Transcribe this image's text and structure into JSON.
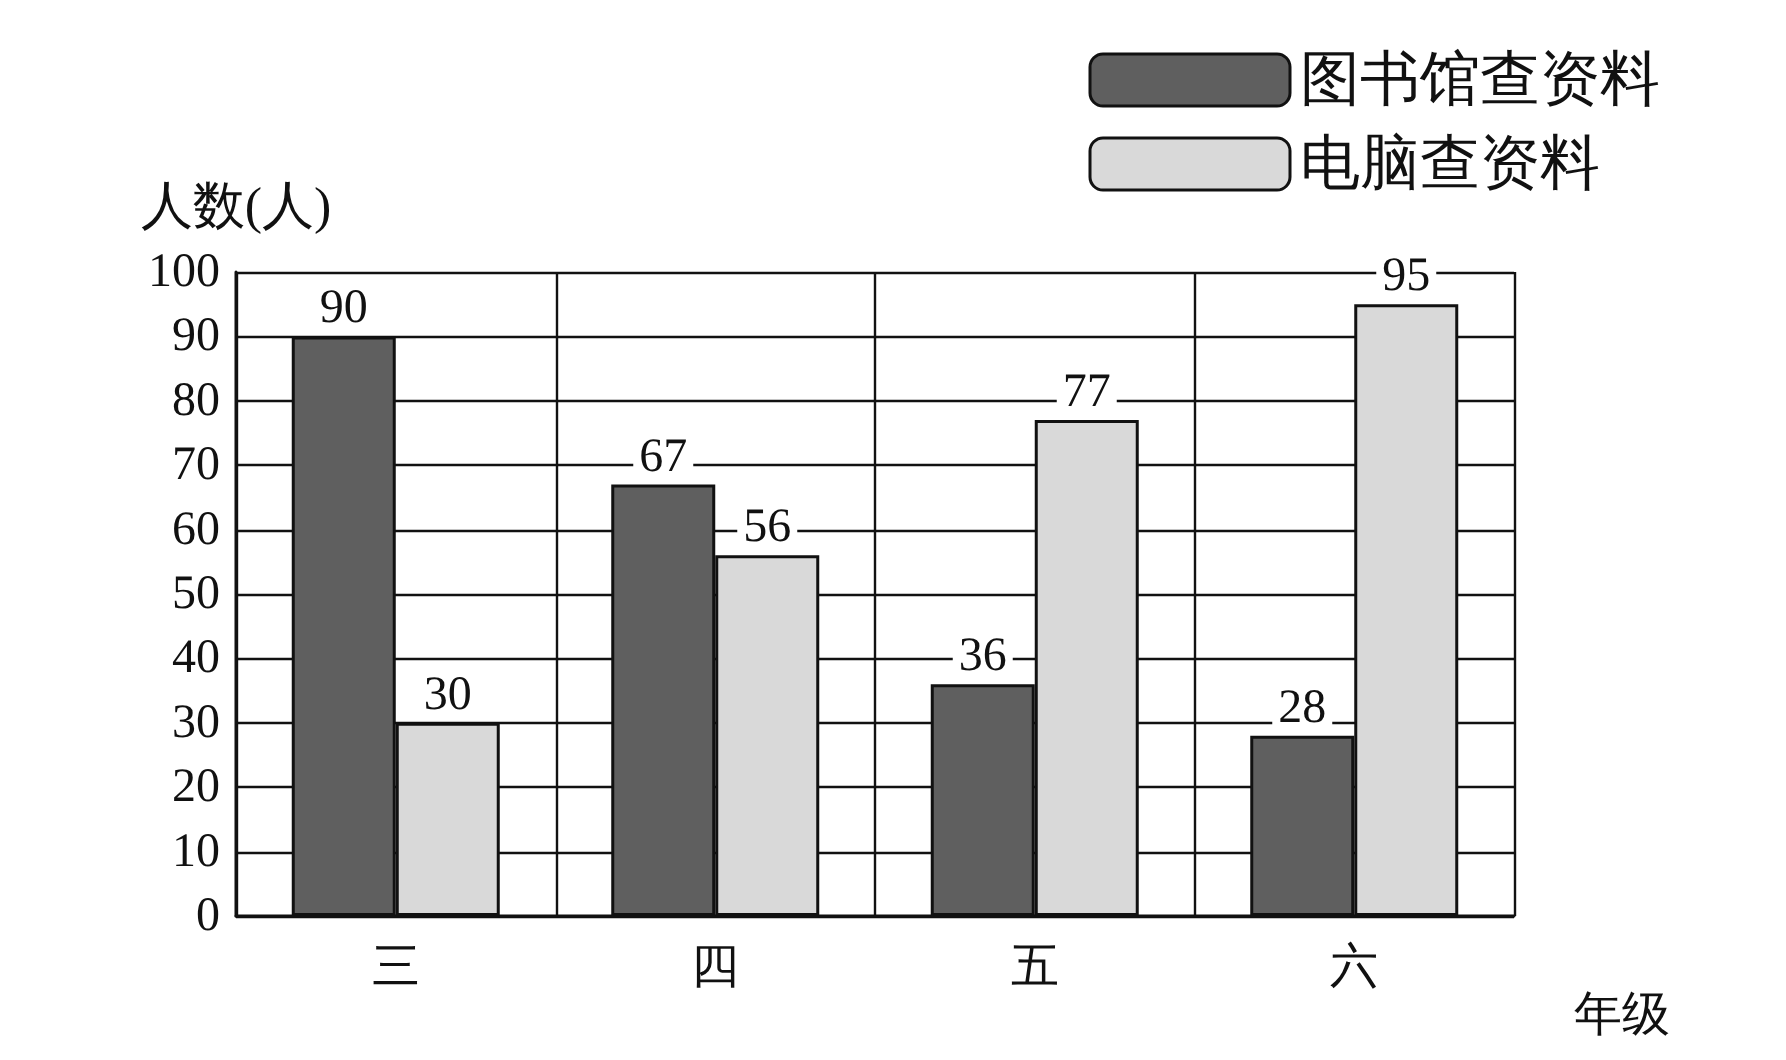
{
  "chart_data": {
    "type": "bar",
    "categories": [
      "三",
      "四",
      "五",
      "六"
    ],
    "series": [
      {
        "name": "图书馆查资料",
        "color": "#5f5f5f",
        "values": [
          90,
          67,
          36,
          28
        ]
      },
      {
        "name": "电脑查资料",
        "color": "#d9d9d9",
        "values": [
          30,
          56,
          77,
          95
        ]
      }
    ],
    "ylabel": "人数(人)",
    "xlabel": "年级",
    "ylim": [
      0,
      100
    ],
    "yticks": [
      0,
      10,
      20,
      30,
      40,
      50,
      60,
      70,
      80,
      90,
      100
    ],
    "grid": true,
    "legend": "top right",
    "data_labels": true
  }
}
